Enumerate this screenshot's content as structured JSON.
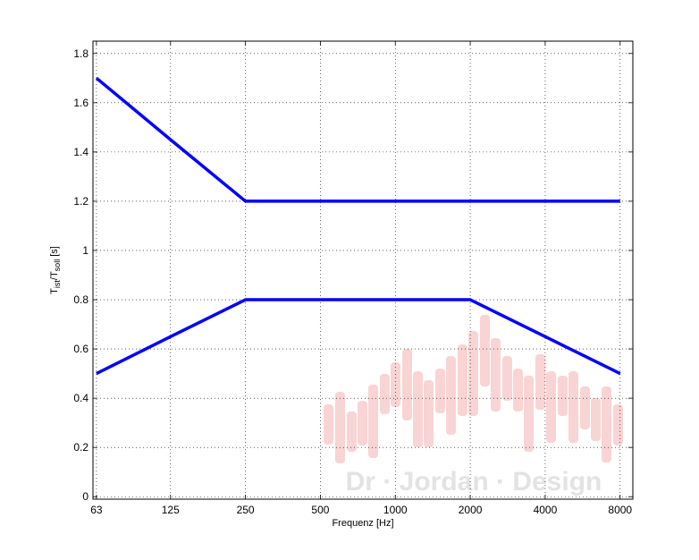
{
  "chart_data": {
    "type": "line",
    "ylabel": {
      "main1": "T",
      "sub1": "ist",
      "main2": "/T",
      "sub2": "soll",
      "unit": "[s]"
    },
    "xlabel": "Frequenz [Hz]",
    "watermark": "Dr · Jordan · Design",
    "x": [
      63,
      125,
      250,
      500,
      1000,
      2000,
      4000,
      8000
    ],
    "series": [
      {
        "color": "#0000ff",
        "values": [
          1.7,
          1.45,
          1.2,
          1.2,
          1.2,
          1.2,
          1.2,
          1.2
        ]
      },
      {
        "color": "#0000ff",
        "values": [
          0.5,
          0.65,
          0.8,
          0.8,
          0.8,
          0.8,
          0.65,
          0.5
        ]
      }
    ],
    "log_x": true,
    "xlim": [
      61,
      9000
    ],
    "xticks": [
      63,
      125,
      250,
      500,
      1000,
      2000,
      4000,
      8000
    ],
    "ylim": [
      -0.01,
      1.85
    ],
    "yticks": [
      0,
      0.2,
      0.4,
      0.6,
      0.8,
      1,
      1.2,
      1.4,
      1.6,
      1.8
    ],
    "grid": true
  }
}
